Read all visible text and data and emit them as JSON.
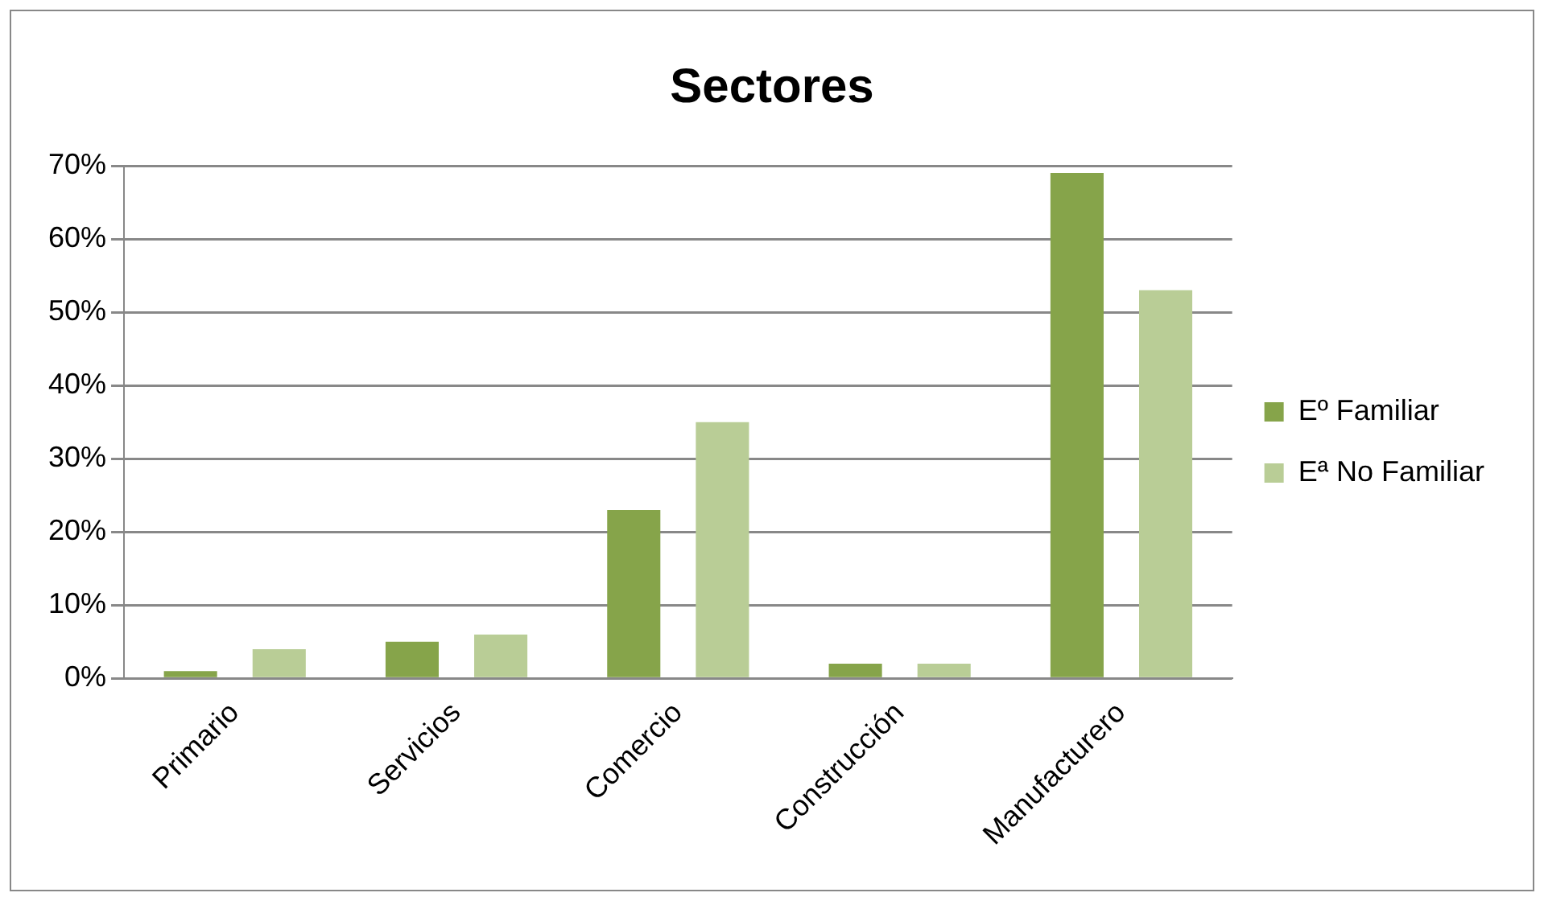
{
  "chart_data": {
    "type": "bar",
    "title": "Sectores",
    "categories": [
      "Primario",
      "Servicios",
      "Comercio",
      "Construcción",
      "Manufacturero"
    ],
    "series": [
      {
        "name": "Eº Familiar",
        "color": "#86a44a",
        "values": [
          1,
          5,
          23,
          2,
          69
        ]
      },
      {
        "name": "Eª No Familiar",
        "color": "#b9cd96",
        "values": [
          4,
          6,
          35,
          2,
          53
        ]
      }
    ],
    "ylim": [
      0,
      70
    ],
    "yticks": [
      {
        "value": 0,
        "label": "0%"
      },
      {
        "value": 10,
        "label": "10%"
      },
      {
        "value": 20,
        "label": "20%"
      },
      {
        "value": 30,
        "label": "30%"
      },
      {
        "value": 40,
        "label": "40%"
      },
      {
        "value": 50,
        "label": "50%"
      },
      {
        "value": 60,
        "label": "60%"
      },
      {
        "value": 70,
        "label": "70%"
      }
    ],
    "grid": "y",
    "legend": "right"
  }
}
